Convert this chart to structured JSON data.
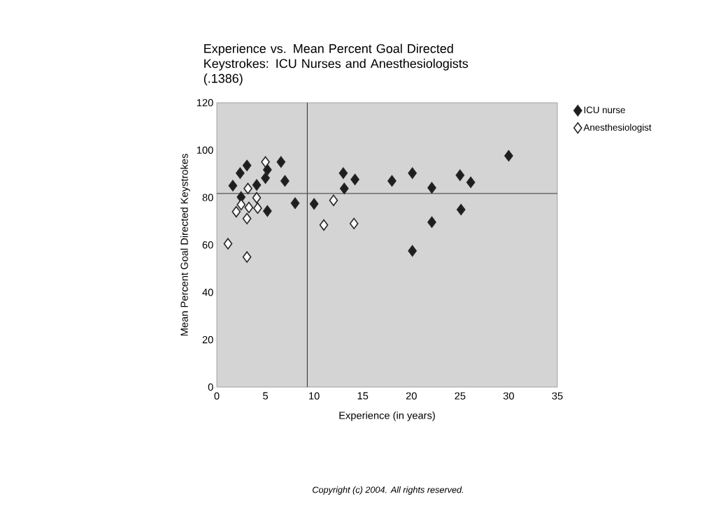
{
  "chart_data": {
    "type": "scatter",
    "title": "Experience vs. Mean Percent Goal Directed Keystrokes: ICU Nurses and Anesthesiologists (.1386)",
    "xlabel": "Experience  (in  years)",
    "ylabel": "Mean Percent Goal Directed Keystrokes",
    "annotations": [
      "Copyright (c) 2004. All rights reserved."
    ],
    "xlim": [
      0,
      35
    ],
    "xticks": [
      0,
      5,
      10,
      15,
      20,
      25,
      30,
      35
    ],
    "ylim": [
      0,
      120
    ],
    "yticks": [
      0,
      20,
      40,
      60,
      80,
      100,
      120
    ],
    "marker": "diamond",
    "legend": "top right",
    "ref_lines": [
      {
        "axis": "x",
        "value": 9.3,
        "color": "#333333"
      },
      {
        "axis": "y",
        "value": 81.7,
        "color": "#555555"
      }
    ],
    "series": [
      {
        "name": "ICU nurse",
        "color": "#1e1e1e",
        "x": [
          1.65,
          2.5,
          2.4,
          3.1,
          4.1,
          5.0,
          5.2,
          6.6,
          7.0,
          5.2,
          8.05,
          10.0,
          13.0,
          14.2,
          13.1,
          18.0,
          20.1,
          20.1,
          22.1,
          25.0,
          26.1,
          22.1,
          25.1,
          30.0
        ],
        "values": [
          85,
          80.2,
          90.3,
          93.5,
          85.3,
          88.2,
          91.7,
          95.0,
          87.0,
          74.3,
          77.6,
          77.3,
          90.3,
          87.6,
          83.8,
          87.0,
          90.3,
          57.5,
          84.1,
          89.4,
          86.4,
          69.6,
          74.9,
          97.6
        ]
      },
      {
        "name": "Anesthesiologist",
        "color": "#ffffff",
        "x": [
          5.0,
          3.2,
          4.1,
          2.5,
          3.3,
          4.2,
          2.0,
          3.1,
          1.15,
          3.1,
          12.0,
          11.0,
          14.1
        ],
        "values": [
          95.0,
          83.8,
          79.9,
          77.0,
          75.8,
          75.5,
          74.0,
          71.1,
          60.5,
          54.9,
          78.8,
          68.4,
          69.0
        ]
      }
    ]
  }
}
